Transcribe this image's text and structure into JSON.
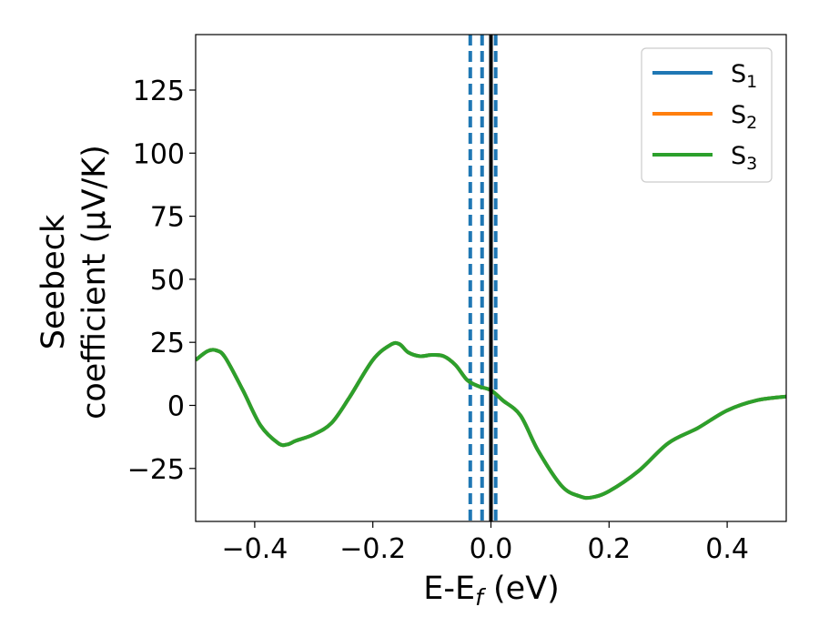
{
  "chart_data": {
    "type": "line",
    "xlabel": {
      "main": "E-E",
      "sub": "f",
      "tail": " (eV)"
    },
    "ylabel": [
      "Seebeck",
      "coefficient  (μV/K)"
    ],
    "xlim": [
      -0.5,
      0.5
    ],
    "ylim": [
      -46,
      147
    ],
    "xticks": [
      -0.4,
      -0.2,
      0.0,
      0.2,
      0.4
    ],
    "xtick_labels": [
      "−0.4",
      "−0.2",
      "0.0",
      "0.2",
      "0.4"
    ],
    "yticks": [
      -25,
      0,
      25,
      50,
      75,
      100,
      125
    ],
    "ytick_labels": [
      "−25",
      "0",
      "25",
      "50",
      "75",
      "100",
      "125"
    ],
    "grid": false,
    "legend": {
      "placement": "top-right",
      "entries": [
        {
          "main": "S",
          "sub": "1",
          "color": "#1f77b4"
        },
        {
          "main": "S",
          "sub": "2",
          "color": "#ff7f0e"
        },
        {
          "main": "S",
          "sub": "3",
          "color": "#2ca02c"
        }
      ]
    },
    "series": [
      {
        "name": "S1",
        "color": "#1f77b4",
        "x": [
          -0.5,
          -0.48,
          -0.465,
          -0.45,
          -0.42,
          -0.39,
          -0.36,
          -0.345,
          -0.33,
          -0.3,
          -0.27,
          -0.24,
          -0.2,
          -0.17,
          -0.155,
          -0.14,
          -0.12,
          -0.1,
          -0.08,
          -0.06,
          -0.04,
          -0.02,
          0.0,
          0.02,
          0.05,
          0.08,
          0.12,
          0.15,
          0.17,
          0.2,
          0.25,
          0.3,
          0.35,
          0.4,
          0.45,
          0.5
        ],
        "y": [
          18,
          21.5,
          21.8,
          19,
          6,
          -8,
          -15,
          -15.5,
          -14,
          -11.5,
          -7,
          3,
          18,
          24,
          24.3,
          21,
          19.5,
          20,
          19.5,
          16,
          10,
          7.5,
          6,
          2,
          -4,
          -18,
          -32,
          -36,
          -36.5,
          -34,
          -26,
          -15,
          -9,
          -2,
          2,
          3.5
        ]
      },
      {
        "name": "S2",
        "color": "#ff7f0e",
        "x": [
          -0.5,
          -0.48,
          -0.465,
          -0.45,
          -0.42,
          -0.39,
          -0.36,
          -0.345,
          -0.33,
          -0.3,
          -0.27,
          -0.24,
          -0.2,
          -0.17,
          -0.155,
          -0.14,
          -0.12,
          -0.1,
          -0.08,
          -0.06,
          -0.04,
          -0.02,
          0.0,
          0.02,
          0.05,
          0.08,
          0.12,
          0.15,
          0.17,
          0.2,
          0.25,
          0.3,
          0.35,
          0.4,
          0.45,
          0.5
        ],
        "y": [
          18,
          21.5,
          21.8,
          19,
          6,
          -8,
          -15,
          -15.5,
          -14,
          -11.5,
          -7,
          3,
          18,
          24,
          24.3,
          21,
          19.5,
          20,
          19.5,
          16,
          10,
          7.5,
          6,
          2,
          -4,
          -18,
          -32,
          -36,
          -36.5,
          -34,
          -26,
          -15,
          -9,
          -2,
          2,
          3.5
        ]
      },
      {
        "name": "S3",
        "color": "#2ca02c",
        "x": [
          -0.5,
          -0.48,
          -0.465,
          -0.45,
          -0.42,
          -0.39,
          -0.36,
          -0.345,
          -0.33,
          -0.3,
          -0.27,
          -0.24,
          -0.2,
          -0.17,
          -0.155,
          -0.14,
          -0.12,
          -0.1,
          -0.08,
          -0.06,
          -0.04,
          -0.02,
          0.0,
          0.02,
          0.05,
          0.08,
          0.12,
          0.15,
          0.17,
          0.2,
          0.25,
          0.3,
          0.35,
          0.4,
          0.45,
          0.5
        ],
        "y": [
          18,
          21.5,
          21.8,
          19,
          6,
          -8,
          -15,
          -15.5,
          -14,
          -11.5,
          -7,
          3,
          18,
          24,
          24.3,
          21,
          19.5,
          20,
          19.5,
          16,
          10,
          7.5,
          6,
          2,
          -4,
          -18,
          -32,
          -36,
          -36.5,
          -34,
          -26,
          -15,
          -9,
          -2,
          2,
          3.5
        ]
      }
    ],
    "vlines": [
      {
        "x": -0.035,
        "style": "dashed",
        "color": "#1f77b4"
      },
      {
        "x": -0.015,
        "style": "dashed",
        "color": "#1f77b4"
      },
      {
        "x": 0.008,
        "style": "dashed",
        "color": "#1f77b4"
      },
      {
        "x": 0.0,
        "style": "solid",
        "color": "#000000"
      }
    ]
  }
}
